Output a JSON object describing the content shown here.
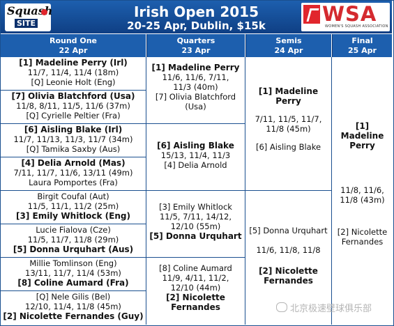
{
  "header": {
    "title": "Irish Open 2015",
    "subtitle": "20-25 Apr, Dublin, $15k",
    "left_logo": "Squash SITE",
    "right_logo": "WSA",
    "right_logo_sub": "WOMEN'S SQUASH ASSOCIATION"
  },
  "columns": {
    "r1": {
      "name": "Round One",
      "date": "22 Apr"
    },
    "qf": {
      "name": "Quarters",
      "date": "23 Apr"
    },
    "sf": {
      "name": "Semis",
      "date": "24 Apr"
    },
    "f": {
      "name": "Final",
      "date": "25 Apr"
    }
  },
  "round_one": [
    {
      "l1": "[1] Madeline Perry (Irl)",
      "l2": "11/7, 11/4, 11/4 (18m)",
      "l3": "[Q] Leonie Holt (Eng)"
    },
    {
      "l1": "[7] Olivia Blatchford (Usa)",
      "l2": "11/8, 8/11, 11/5, 11/6 (37m)",
      "l3": "[Q] Cyrielle Peltier (Fra)"
    },
    {
      "l1": "[6] Aisling Blake (Irl)",
      "l2": "11/7, 11/13, 11/3, 11/7 (34m)",
      "l3": "[Q] Tamika Saxby (Aus)"
    },
    {
      "l1": "[4] Delia Arnold (Mas)",
      "l2": "7/11, 11/7, 11/6, 13/11 (49m)",
      "l3": "Laura Pomportes (Fra)"
    },
    {
      "l1": "Birgit Coufal (Aut)",
      "l2": "11/5, 11/1, 11/2 (25m)",
      "l3": "[3] Emily Whitlock (Eng)"
    },
    {
      "l1": "Lucie Fialova (Cze)",
      "l2": "11/5, 11/7, 11/8 (29m)",
      "l3": "[5] Donna Urquhart (Aus)"
    },
    {
      "l1": "Millie Tomlinson (Eng)",
      "l2": "13/11, 11/7, 11/4 (53m)",
      "l3": "[8] Coline Aumard (Fra)"
    },
    {
      "l1": "[Q] Nele Gilis (Bel)",
      "l2": "12/10, 11/4, 11/8 (45m)",
      "l3": "[2] Nicolette Fernandes (Guy)"
    }
  ],
  "quarters": [
    {
      "w": "[1] Madeline Perry",
      "s1": "11/6, 11/6, 7/11,",
      "s2": "11/3 (40m)",
      "o1": "[7] Olivia Blatchford",
      "o2": "(Usa)"
    },
    {
      "w": "[6] Aisling Blake",
      "s1": "15/13, 11/4, 11/3",
      "o1": "[4] Delia Arnold"
    },
    {
      "o1": "[3] Emily Whitlock",
      "s1": "11/5, 7/11, 14/12,",
      "s2": "12/10 (55m)",
      "w": "[5] Donna Urquhart"
    },
    {
      "o1": "[8] Coline Aumard",
      "s1": "11/9, 4/11, 11/2,",
      "s2": "12/10 (44m)",
      "w1": "[2] Nicolette",
      "w2": "Fernandes"
    }
  ],
  "semis": [
    {
      "w1": "[1] Madeline",
      "w2": "Perry",
      "s1": "7/11, 11/5, 11/7,",
      "s2": "11/8 (45m)",
      "o": "[6] Aisling Blake"
    },
    {
      "o": "[5] Donna Urquhart",
      "s": "11/6, 11/8, 11/8",
      "w1": "[2] Nicolette",
      "w2": "Fernandes"
    }
  ],
  "final": {
    "w1": "[1]",
    "w2": "Madeline",
    "w3": "Perry",
    "s1": "11/8, 11/6,",
    "s2": "11/8 (43m)",
    "o1": "[2] Nicolette",
    "o2": "Fernandes"
  },
  "watermark": "北京极速壁球俱乐部",
  "colors": {
    "header_blue": "#1d5fae",
    "border_blue": "#1a4f8f",
    "brand_red": "#d42a2f"
  }
}
